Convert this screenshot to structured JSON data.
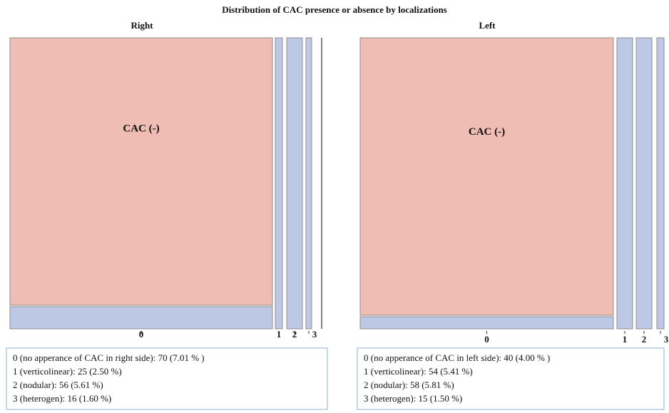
{
  "title": "Distribution  of CAC presence or absence by localizations",
  "cell_label": "CAC (-)",
  "chart_data": [
    {
      "type": "mosaic",
      "panel": "Right",
      "categories": [
        "0",
        "1",
        "2",
        "3"
      ],
      "counts": [
        70,
        25,
        56,
        16
      ],
      "percentages": [
        7.01,
        2.5,
        5.61,
        1.6
      ],
      "top_segment_label": "CAC (-)",
      "legend": [
        "0 (no apperance of CAC in right  side):  70 (7.01 % )",
        "1 (verticolinear):  25 (2.50 %)",
        "2 (nodular):  56 (5.61 %)",
        "3 (heterogen):  16 (1.60 %)"
      ]
    },
    {
      "type": "mosaic",
      "panel": "Left",
      "categories": [
        "0",
        "1",
        "2",
        "3"
      ],
      "counts": [
        40,
        54,
        58,
        15
      ],
      "percentages": [
        4.0,
        5.41,
        5.81,
        1.5
      ],
      "top_segment_label": "CAC (-)",
      "legend": [
        "0 (no apperance of CAC in left  side): 40 (4.00 % )",
        "1 (verticolinear):  54 (5.41 %)",
        "2 (nodular):  58 (5.81 %)",
        "3 (heterogen):  15 (1.50 %)"
      ]
    }
  ]
}
